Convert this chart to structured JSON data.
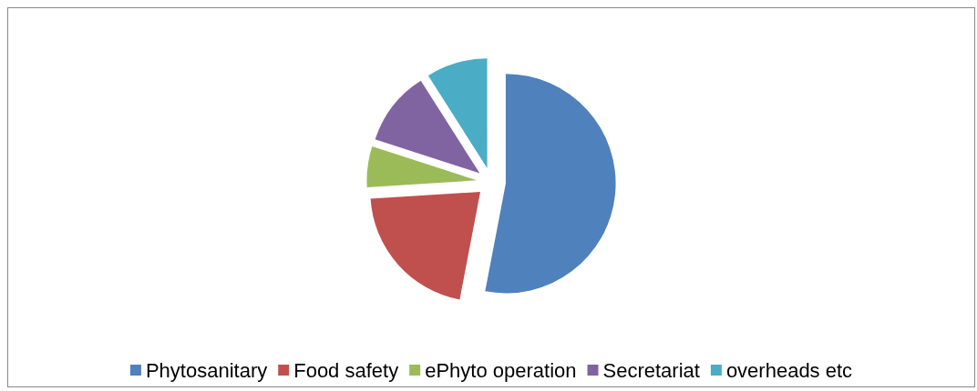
{
  "chart_data": {
    "type": "pie",
    "categories": [
      "Phytosanitary",
      "Food safety",
      "ePhyto operation",
      "Secretariat",
      "overheads etc"
    ],
    "values": [
      53,
      21,
      6,
      11,
      9
    ],
    "colors": [
      "#4f81bd",
      "#c0504d",
      "#9bbb59",
      "#8064a2",
      "#4bacc6"
    ],
    "legend": "bottom"
  }
}
